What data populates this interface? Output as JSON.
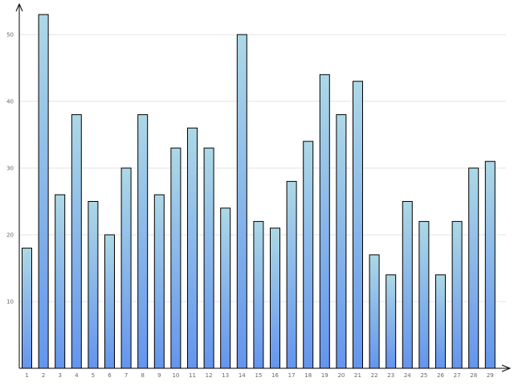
{
  "chart_data": {
    "type": "bar",
    "categories": [
      "1",
      "2",
      "3",
      "4",
      "5",
      "6",
      "7",
      "8",
      "9",
      "10",
      "11",
      "12",
      "13",
      "14",
      "15",
      "16",
      "17",
      "18",
      "19",
      "20",
      "21",
      "22",
      "23",
      "24",
      "25",
      "26",
      "27",
      "28",
      "29"
    ],
    "values": [
      18,
      53,
      26,
      38,
      25,
      20,
      30,
      38,
      26,
      33,
      36,
      33,
      24,
      50,
      22,
      21,
      28,
      34,
      44,
      38,
      43,
      17,
      14,
      25,
      22,
      14,
      22,
      30,
      31
    ],
    "y_ticks": [
      "10",
      "20",
      "30",
      "40",
      "50"
    ],
    "ylim": [
      0,
      55
    ],
    "grid": true,
    "colors": {
      "bar_top": "#add8e6",
      "bar_bottom": "#6495ed",
      "bar_stroke": "#000000",
      "grid": "#e3e3e3",
      "axis": "#000000"
    }
  }
}
